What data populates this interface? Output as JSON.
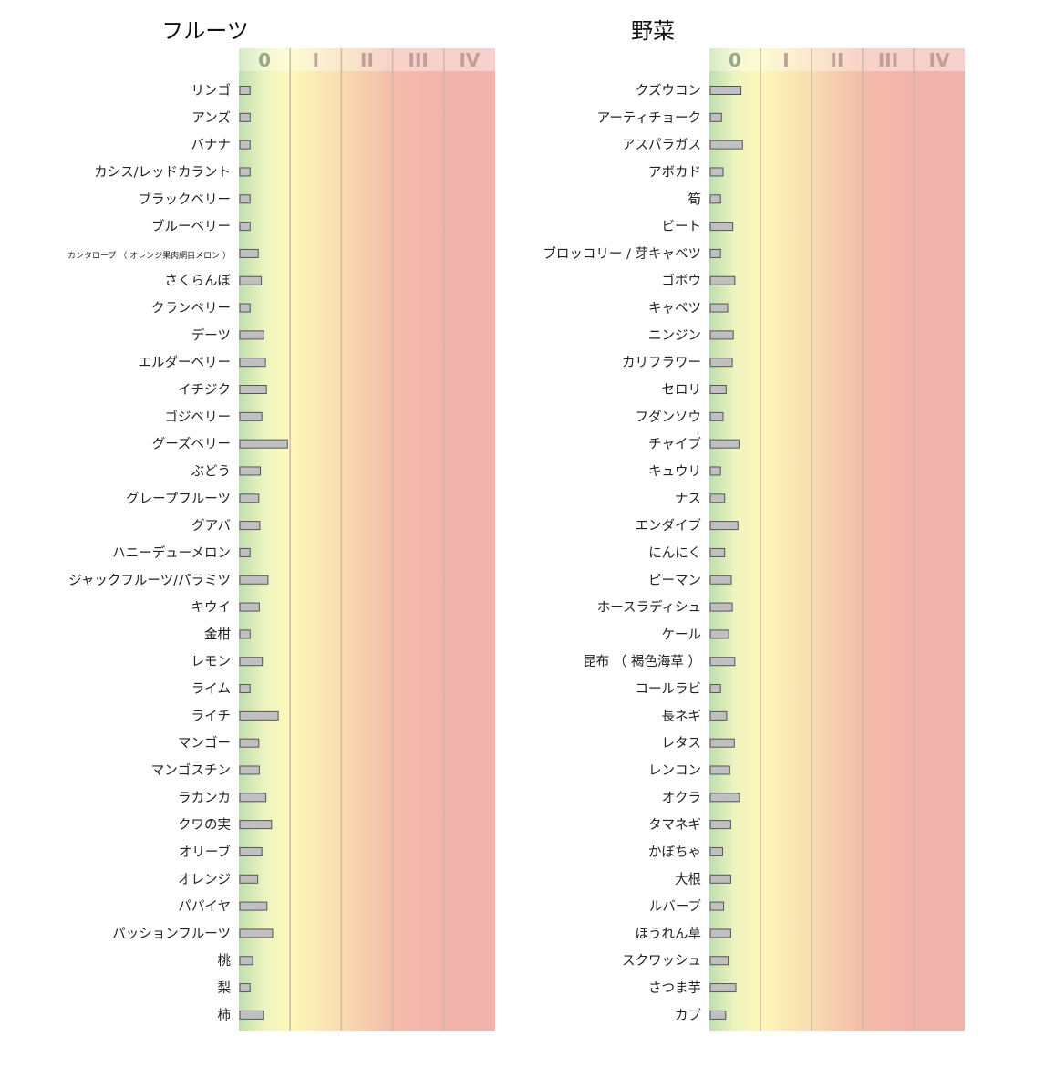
{
  "chart_data": [
    {
      "type": "bar",
      "orientation": "horizontal",
      "title": "フルーツ",
      "scale_labels": [
        "0",
        "I",
        "II",
        "III",
        "IV"
      ],
      "xlim": [
        0,
        5
      ],
      "categories": [
        "リンゴ",
        "アンズ",
        "バナナ",
        "カシス/レッドカラント",
        "ブラックベリー",
        "ブルーベリー",
        "カンタロープ （ オレンジ果肉網目メロン ）",
        "さくらんぼ",
        "クランベリー",
        "デーツ",
        "エルダーベリー",
        "イチジク",
        "ゴジベリー",
        "グーズベリー",
        "ぶどう",
        "グレープフルーツ",
        "グアバ",
        "ハニーデューメロン",
        "ジャックフルーツ/パラミツ",
        "キウイ",
        "金柑",
        "レモン",
        "ライム",
        "ライチ",
        "マンゴー",
        "マンゴスチン",
        "ラカンカ",
        "クワの実",
        "オリーブ",
        "オレンジ",
        "パパイヤ",
        "パッションフルーツ",
        "桃",
        "梨",
        "柿"
      ],
      "values": [
        0.2,
        0.2,
        0.2,
        0.2,
        0.2,
        0.2,
        0.36,
        0.42,
        0.2,
        0.47,
        0.5,
        0.52,
        0.43,
        0.93,
        0.4,
        0.37,
        0.39,
        0.2,
        0.55,
        0.38,
        0.2,
        0.44,
        0.2,
        0.75,
        0.37,
        0.38,
        0.51,
        0.62,
        0.43,
        0.35,
        0.53,
        0.64,
        0.25,
        0.2,
        0.46
      ],
      "grid": true,
      "legend": "none"
    },
    {
      "type": "bar",
      "orientation": "horizontal",
      "title": "野菜",
      "scale_labels": [
        "0",
        "I",
        "II",
        "III",
        "IV"
      ],
      "xlim": [
        0,
        5
      ],
      "categories": [
        "クズウコン",
        "アーティチョーク",
        "アスパラガス",
        "アボカド",
        "筍",
        "ビート",
        "ブロッコリー / 芽キャベツ",
        "ゴボウ",
        "キャベツ",
        "ニンジン",
        "カリフラワー",
        "セロリ",
        "フダンソウ",
        "チャイブ",
        "キュウリ",
        "ナス",
        "エンダイブ",
        "にんにく",
        "ピーマン",
        "ホースラディシュ",
        "ケール",
        "昆布 （ 褐色海草 ）",
        "コールラビ",
        "長ネギ",
        "レタス",
        "レンコン",
        "オクラ",
        "タマネギ",
        "かぼちゃ",
        "大根",
        "ルバーブ",
        "ほうれん草",
        "スクワッシュ",
        "さつま芋",
        "カブ"
      ],
      "values": [
        0.6,
        0.22,
        0.63,
        0.25,
        0.2,
        0.44,
        0.2,
        0.48,
        0.34,
        0.45,
        0.43,
        0.31,
        0.25,
        0.56,
        0.2,
        0.28,
        0.54,
        0.28,
        0.41,
        0.43,
        0.36,
        0.48,
        0.2,
        0.32,
        0.47,
        0.38,
        0.57,
        0.4,
        0.24,
        0.4,
        0.26,
        0.4,
        0.35,
        0.5,
        0.3
      ],
      "grid": true,
      "legend": "none"
    }
  ]
}
